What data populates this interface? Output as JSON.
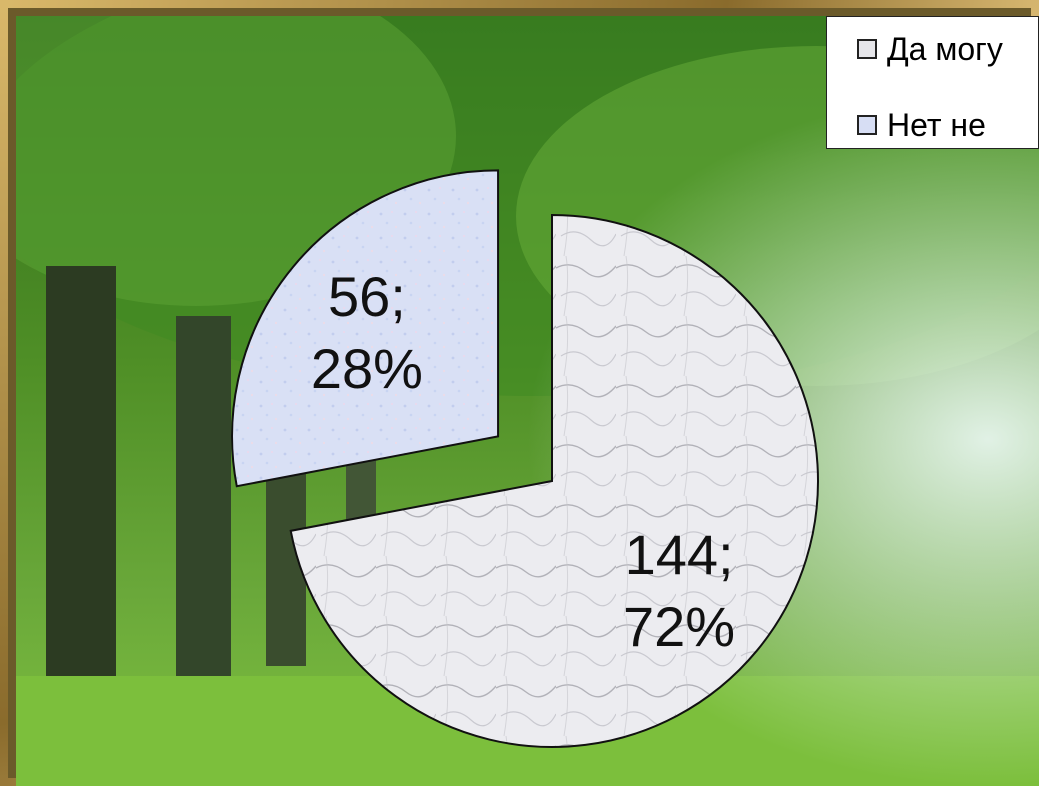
{
  "colors": {
    "yes_fill": "#e6e6ea",
    "no_fill": "#d7def4",
    "frame": "#b8954a"
  },
  "chart_data": {
    "type": "pie",
    "title": "",
    "exploded": true,
    "categories": [
      "Да могу",
      "Нет не"
    ],
    "values": [
      144,
      56
    ],
    "percents": [
      72,
      28
    ],
    "data_labels": [
      "144;\n72%",
      "56;\n28%"
    ],
    "legend_position": "top-right"
  },
  "legend": {
    "items": [
      {
        "label": "Да могу",
        "icon": "square-swatch-icon"
      },
      {
        "label": "Нет не",
        "icon": "square-swatch-icon"
      }
    ]
  }
}
